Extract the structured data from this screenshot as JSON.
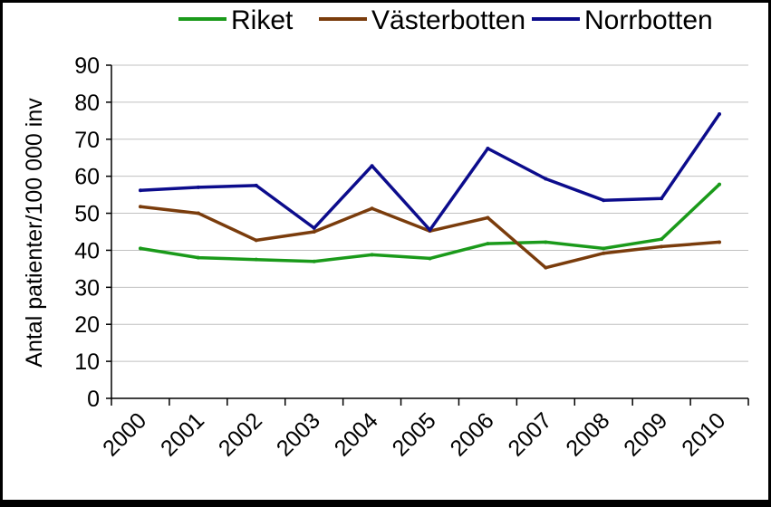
{
  "chart_data": {
    "type": "line",
    "title": "",
    "xlabel": "",
    "ylabel": "Antal patienter/100 000 inv",
    "categories": [
      "2000",
      "2001",
      "2002",
      "2003",
      "2004",
      "2005",
      "2006",
      "2007",
      "2008",
      "2009",
      "2010"
    ],
    "ylim": [
      0,
      90
    ],
    "yticks": [
      "0",
      "10",
      "20",
      "30",
      "40",
      "50",
      "60",
      "70",
      "80",
      "90"
    ],
    "grid": true,
    "legend_position": "top",
    "series": [
      {
        "name": "Riket",
        "color": "#1a9a1a",
        "values": [
          40.5,
          38.0,
          37.5,
          37.0,
          38.8,
          37.8,
          41.8,
          42.2,
          40.5,
          43.0,
          57.8
        ]
      },
      {
        "name": "Västerbotten",
        "color": "#7a3c0c",
        "values": [
          51.8,
          50.0,
          42.7,
          45.0,
          51.3,
          45.2,
          48.8,
          35.3,
          39.2,
          41.0,
          42.2
        ]
      },
      {
        "name": "Norrbotten",
        "color": "#0c0c8c",
        "values": [
          56.2,
          57.0,
          57.5,
          46.0,
          62.8,
          45.5,
          67.5,
          59.3,
          53.5,
          54.0,
          76.8
        ]
      }
    ]
  }
}
